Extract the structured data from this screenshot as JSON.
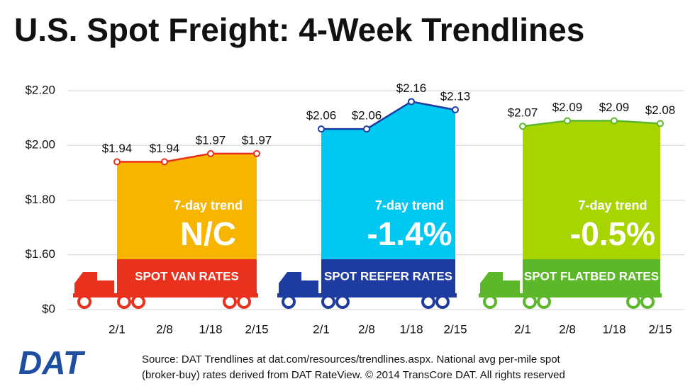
{
  "title": "U.S. Spot Freight: 4-Week Trendlines",
  "logo": "DAT",
  "source": [
    "Source: DAT Trendlines at dat.com/resources/trendlines.aspx. National avg per-mile spot",
    "(broker-buy) rates derived from DAT RateView. © 2014 TransCore DAT. All rights reserved"
  ],
  "chart_data": {
    "type": "area",
    "ylim": [
      0,
      2.2
    ],
    "yticks": [
      {
        "value": 0,
        "label": "$0"
      },
      {
        "value": 1.6,
        "label": "$1.60"
      },
      {
        "value": 1.8,
        "label": "$1.80"
      },
      {
        "value": 2.0,
        "label": "$2.00"
      },
      {
        "value": 2.2,
        "label": "$2.20"
      }
    ],
    "grid": true,
    "series": [
      {
        "name": "SPOT VAN RATES",
        "color": "#f7b500",
        "line_color": "#e8321e",
        "categories": [
          "2/1",
          "2/8",
          "1/18",
          "2/15"
        ],
        "values": [
          1.94,
          1.94,
          1.97,
          1.97
        ],
        "value_labels": [
          "$1.94",
          "$1.94",
          "$1.97",
          "$1.97"
        ],
        "trend_label": "7-day trend",
        "trend": "N/C"
      },
      {
        "name": "SPOT REEFER RATES",
        "color": "#00c8f0",
        "line_color": "#1e3ca0",
        "categories": [
          "2/1",
          "2/8",
          "1/18",
          "2/15"
        ],
        "values": [
          2.06,
          2.06,
          2.16,
          2.13
        ],
        "value_labels": [
          "$2.06",
          "$2.06",
          "$2.16",
          "$2.13"
        ],
        "trend_label": "7-day trend",
        "trend": "-1.4%"
      },
      {
        "name": "SPOT FLATBED RATES",
        "color": "#a8d400",
        "line_color": "#5cb82a",
        "categories": [
          "2/1",
          "2/8",
          "1/18",
          "2/15"
        ],
        "values": [
          2.07,
          2.09,
          2.09,
          2.08
        ],
        "value_labels": [
          "$2.07",
          "$2.09",
          "$2.09",
          "$2.08"
        ],
        "trend_label": "7-day trend",
        "trend": "-0.5%"
      }
    ]
  }
}
